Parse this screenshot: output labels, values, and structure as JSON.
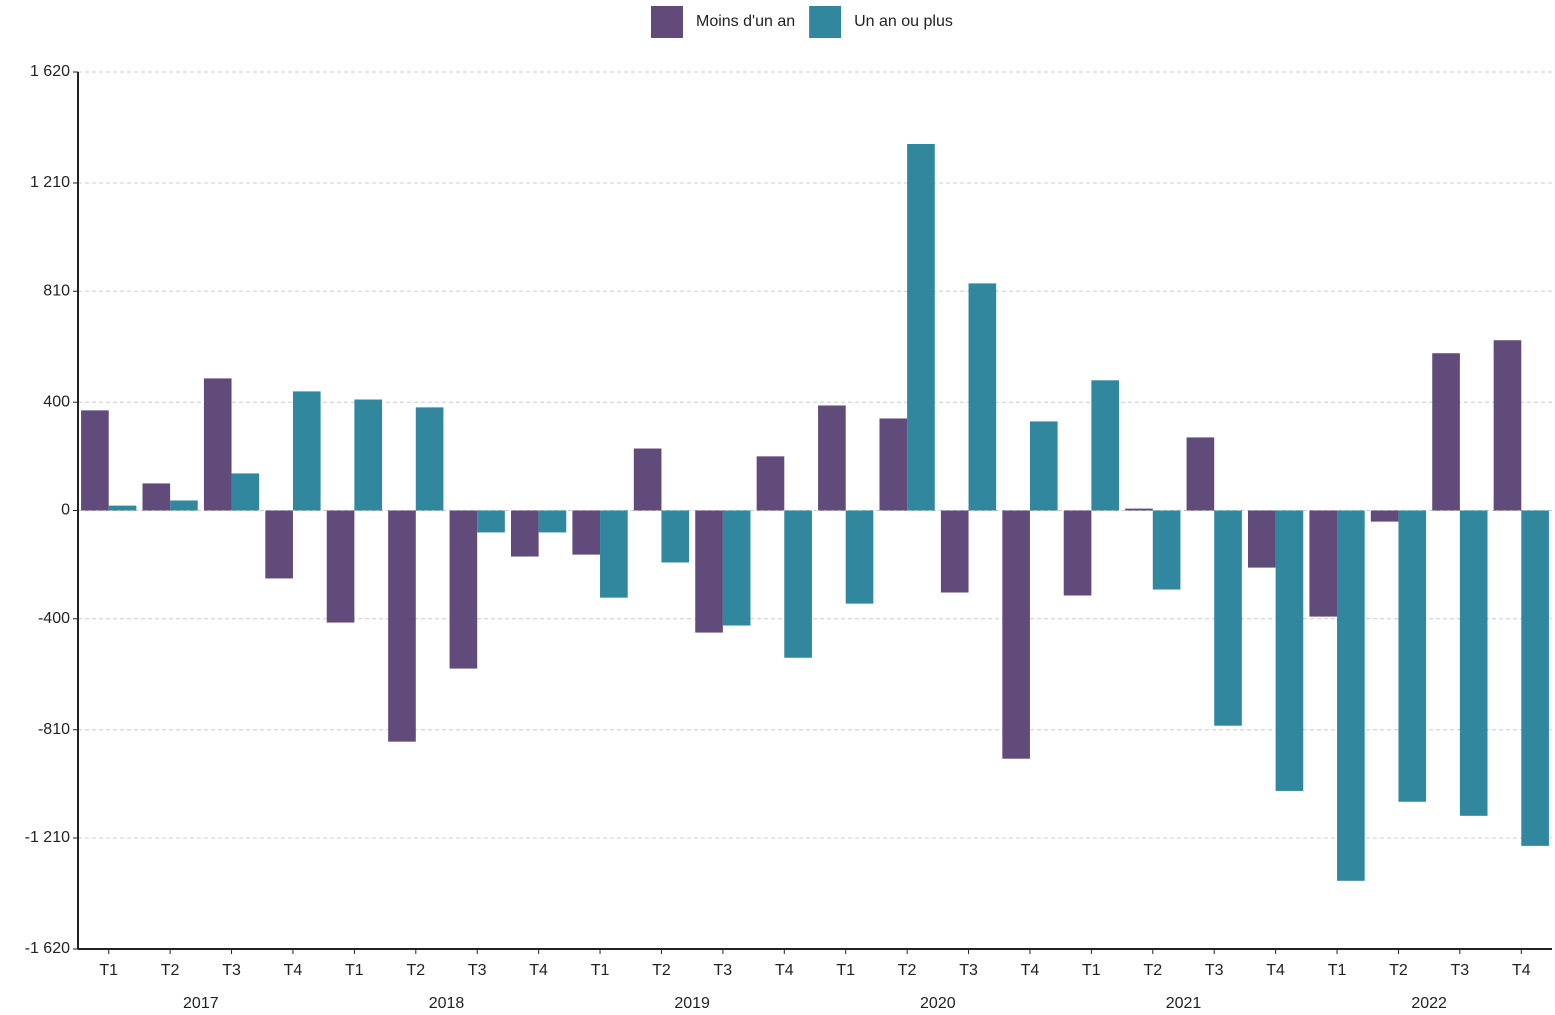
{
  "chart_data": {
    "type": "bar",
    "categories": [
      "T1",
      "T2",
      "T3",
      "T4",
      "T1",
      "T2",
      "T3",
      "T4",
      "T1",
      "T2",
      "T3",
      "T4",
      "T1",
      "T2",
      "T3",
      "T4",
      "T1",
      "T2",
      "T3",
      "T4",
      "T1",
      "T2",
      "T3",
      "T4"
    ],
    "years": [
      "2017",
      "2018",
      "2019",
      "2020",
      "2021",
      "2022"
    ],
    "series": [
      {
        "name": "Moins d'un an",
        "color": "#614b7b",
        "values": [
          370,
          100,
          488,
          -251,
          -414,
          -854,
          -584,
          -170,
          -163,
          229,
          -451,
          200,
          388,
          340,
          -303,
          -917,
          -314,
          7,
          270,
          -211,
          -392,
          -41,
          581,
          629
        ]
      },
      {
        "name": "Un an ou plus",
        "color": "#31879d",
        "values": [
          18,
          37,
          137,
          440,
          410,
          381,
          -81,
          -81,
          -322,
          -192,
          -425,
          -544,
          -344,
          1354,
          839,
          329,
          481,
          -292,
          -795,
          -1036,
          -1368,
          -1076,
          -1128,
          -1239
        ]
      }
    ],
    "ylim": [
      -1620,
      1620
    ],
    "yticks": [
      {
        "value": -1620,
        "label": "-1 620"
      },
      {
        "value": -1210,
        "label": "-1 210"
      },
      -810,
      -400,
      0,
      400,
      810,
      {
        "value": 1210,
        "label": "1 210"
      },
      {
        "value": 1620,
        "label": "1 620"
      }
    ],
    "grid": true,
    "legend": "top"
  }
}
